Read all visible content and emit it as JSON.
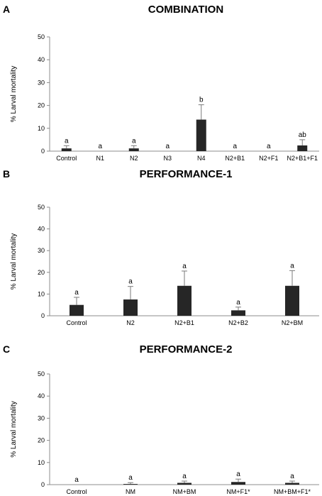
{
  "chart_data": [
    {
      "type": "bar",
      "panel": "A",
      "title": "COMBINATION",
      "ylabel": "% Larval mortality",
      "ylim": [
        0,
        50
      ],
      "yticks": [
        0,
        10,
        20,
        30,
        40,
        50
      ],
      "categories": [
        "Control",
        "N1",
        "N2",
        "N3",
        "N4",
        "N2+B1",
        "N2+F1",
        "N2+B1+F1"
      ],
      "values": [
        1.2,
        0,
        1.2,
        0,
        13.8,
        0,
        0,
        2.5
      ],
      "errors": [
        1.2,
        0,
        1.2,
        0,
        6.5,
        0,
        0,
        2.5
      ],
      "labels": [
        "a",
        "a",
        "a",
        "a",
        "b",
        "a",
        "a",
        "ab"
      ]
    },
    {
      "type": "bar",
      "panel": "B",
      "title": "PERFORMANCE-1",
      "ylabel": "% Larval mortality",
      "ylim": [
        0,
        50
      ],
      "yticks": [
        0,
        10,
        20,
        30,
        40,
        50
      ],
      "categories": [
        "Control",
        "N2",
        "N2+B1",
        "N2+B2",
        "N2+BM"
      ],
      "values": [
        5.0,
        7.5,
        13.8,
        2.5,
        13.8
      ],
      "errors": [
        3.5,
        6.0,
        6.8,
        1.5,
        7.0
      ],
      "labels": [
        "a",
        "a",
        "a",
        "a",
        "a"
      ]
    },
    {
      "type": "bar",
      "panel": "C",
      "title": "PERFORMANCE-2",
      "ylabel": "% Larval mortality",
      "ylim": [
        0,
        50
      ],
      "yticks": [
        0,
        10,
        20,
        30,
        40,
        50
      ],
      "categories": [
        "Control",
        "NM",
        "NM+BM",
        "NM+F1*",
        "NM+BM+F1*"
      ],
      "values": [
        0,
        0.3,
        0.8,
        1.2,
        0.8
      ],
      "errors": [
        0,
        0.6,
        0.8,
        1.3,
        0.8
      ],
      "labels": [
        "a",
        "a",
        "a",
        "a",
        "a"
      ]
    }
  ]
}
